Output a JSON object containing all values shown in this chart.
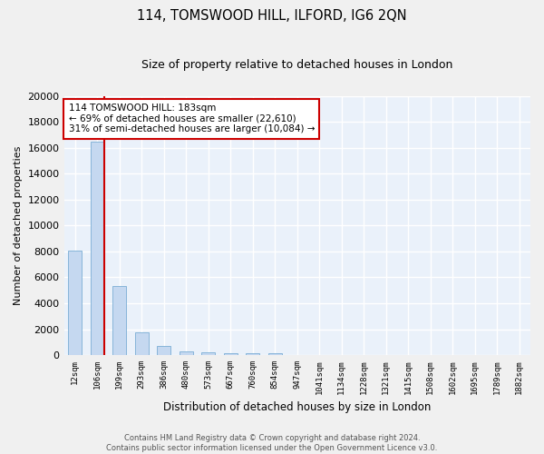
{
  "title": "114, TOMSWOOD HILL, ILFORD, IG6 2QN",
  "subtitle": "Size of property relative to detached houses in London",
  "xlabel": "Distribution of detached houses by size in London",
  "ylabel": "Number of detached properties",
  "bar_color": "#c5d8f0",
  "bar_edge_color": "#7aadd4",
  "categories": [
    "12sqm",
    "106sqm",
    "199sqm",
    "293sqm",
    "386sqm",
    "480sqm",
    "573sqm",
    "667sqm",
    "760sqm",
    "854sqm",
    "947sqm",
    "1041sqm",
    "1134sqm",
    "1228sqm",
    "1321sqm",
    "1415sqm",
    "1508sqm",
    "1602sqm",
    "1695sqm",
    "1789sqm",
    "1882sqm"
  ],
  "values": [
    8100,
    16500,
    5300,
    1750,
    700,
    300,
    200,
    175,
    150,
    120,
    0,
    0,
    0,
    0,
    0,
    0,
    0,
    0,
    0,
    0,
    0
  ],
  "ylim": [
    0,
    20000
  ],
  "yticks": [
    0,
    2000,
    4000,
    6000,
    8000,
    10000,
    12000,
    14000,
    16000,
    18000,
    20000
  ],
  "red_line_index": 1,
  "annotation_title": "114 TOMSWOOD HILL: 183sqm",
  "annotation_line1": "← 69% of detached houses are smaller (22,610)",
  "annotation_line2": "31% of semi-detached houses are larger (10,084) →",
  "annotation_box_color": "#ffffff",
  "annotation_box_edge": "#cc0000",
  "red_line_color": "#cc0000",
  "bg_color": "#eaf1fa",
  "grid_color": "#d0dcea",
  "footer1": "Contains HM Land Registry data © Crown copyright and database right 2024.",
  "footer2": "Contains public sector information licensed under the Open Government Licence v3.0."
}
